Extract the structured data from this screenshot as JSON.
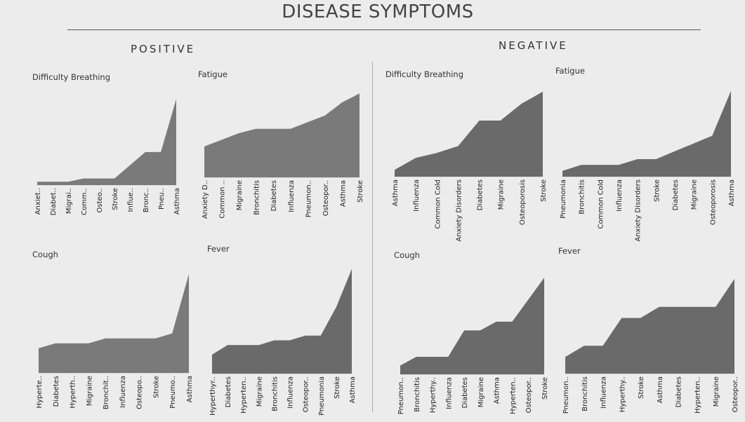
{
  "title": "DISEASE SYMPTOMS",
  "sections": {
    "positive": "POSITIVE",
    "negative": "NEGATIVE"
  },
  "colors": {
    "area_light": "#7a7a7a",
    "area_dark": "#6a6a6a",
    "background": "#ececec"
  },
  "chart_data": [
    {
      "id": "pos-difficulty-breathing",
      "type": "area",
      "title": "Difficulty Breathing",
      "categories": [
        "Anxiet..",
        "Diabet..",
        "Migrai..",
        "Comm..",
        "Osteo..",
        "Stroke",
        "Influe..",
        "Bronc..",
        "Pneu..",
        "Asthma"
      ],
      "values": [
        1,
        1,
        1,
        2,
        2,
        2,
        6,
        10,
        10,
        26
      ],
      "ylim": [
        0,
        28
      ]
    },
    {
      "id": "pos-fatigue",
      "type": "area",
      "title": "Fatigue",
      "categories": [
        "Anxiety D..",
        "Common ..",
        "Migraine",
        "Bronchitis",
        "Diabetes",
        "Influenza",
        "Pneumon..",
        "Osteopor..",
        "Asthma",
        "Stroke"
      ],
      "values": [
        14,
        17,
        20,
        22,
        22,
        22,
        25,
        28,
        34,
        38
      ],
      "ylim": [
        0,
        40
      ]
    },
    {
      "id": "neg-difficulty-breathing",
      "type": "area",
      "title": "Difficulty Breathing",
      "categories": [
        "Asthma",
        "Influenza",
        "Common Cold",
        "Anxiety Disorders",
        "Diabetes",
        "Migraine",
        "Osteoporosis",
        "Stroke"
      ],
      "values": [
        4,
        11,
        14,
        18,
        33,
        33,
        43,
        50
      ],
      "ylim": [
        0,
        52
      ]
    },
    {
      "id": "neg-fatigue",
      "type": "area",
      "title": "Fatigue",
      "categories": [
        "Pneumonia",
        "Bronchitis",
        "Common Cold",
        "Influenza",
        "Anxiety Disorders",
        "Stroke",
        "Diabetes",
        "Migraine",
        "Osteoporosis",
        "Asthma"
      ],
      "values": [
        3,
        6,
        6,
        6,
        9,
        9,
        13,
        17,
        21,
        44
      ],
      "ylim": [
        0,
        46
      ]
    },
    {
      "id": "pos-cough",
      "type": "area",
      "title": "Cough",
      "categories": [
        "Hyperte..",
        "Diabetes",
        "Hyperth..",
        "Migraine",
        "Bronchit..",
        "Influenza",
        "Osteopo..",
        "Stroke",
        "Pneumo..",
        "Asthma"
      ],
      "values": [
        5,
        6,
        6,
        6,
        7,
        7,
        7,
        7,
        8,
        20
      ],
      "ylim": [
        0,
        21
      ]
    },
    {
      "id": "pos-fever",
      "type": "area",
      "title": "Fever",
      "categories": [
        "Hyperthyr..",
        "Diabetes",
        "Hyperten..",
        "Migraine",
        "Bronchitis",
        "Influenza",
        "Osteopor..",
        "Pneumonia",
        "Stroke",
        "Asthma"
      ],
      "values": [
        4,
        6,
        6,
        6,
        7,
        7,
        8,
        8,
        14,
        22
      ],
      "ylim": [
        0,
        23
      ]
    },
    {
      "id": "neg-cough",
      "type": "area",
      "title": "Cough",
      "categories": [
        "Pneumon..",
        "Bronchitis",
        "Hyperthy..",
        "Influenza",
        "Diabetes",
        "Migraine",
        "Asthma",
        "Hyperten..",
        "Osteopor..",
        "Stroke"
      ],
      "values": [
        2,
        4,
        4,
        4,
        10,
        10,
        12,
        12,
        17,
        22
      ],
      "ylim": [
        0,
        23
      ]
    },
    {
      "id": "neg-fever",
      "type": "area",
      "title": "Fever",
      "categories": [
        "Pneumon..",
        "Bronchitis",
        "Influenza",
        "Hyperthy..",
        "Stroke",
        "Asthma",
        "Diabetes",
        "Hyperten..",
        "Migraine",
        "Osteopor.."
      ],
      "values": [
        3,
        5,
        5,
        10,
        10,
        12,
        12,
        12,
        12,
        17
      ],
      "ylim": [
        0,
        18
      ]
    }
  ]
}
